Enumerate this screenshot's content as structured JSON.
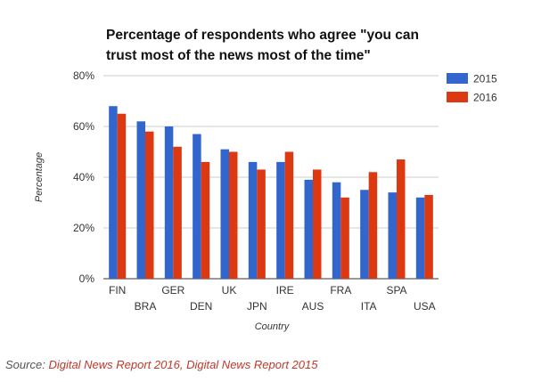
{
  "chart_data": {
    "type": "bar",
    "title_lines": [
      "Percentage of respondents who agree \"you can",
      "trust most of the news most of the time\""
    ],
    "xlabel": "Country",
    "ylabel": "Percentage",
    "ylim": [
      0,
      80
    ],
    "yticks": [
      "0%",
      "20%",
      "40%",
      "60%",
      "80%"
    ],
    "ytick_values": [
      0,
      20,
      40,
      60,
      80
    ],
    "grid": true,
    "legend_position": "right",
    "categories": [
      "FIN",
      "BRA",
      "GER",
      "DEN",
      "UK",
      "JPN",
      "IRE",
      "AUS",
      "FRA",
      "ITA",
      "SPA",
      "USA"
    ],
    "series": [
      {
        "name": "2015",
        "color": "#3366cc",
        "values": [
          68,
          62,
          60,
          57,
          51,
          46,
          46,
          39,
          38,
          35,
          34,
          32
        ]
      },
      {
        "name": "2016",
        "color": "#dc3912",
        "values": [
          65,
          58,
          52,
          46,
          50,
          43,
          50,
          43,
          32,
          42,
          47,
          33
        ]
      }
    ]
  },
  "source": {
    "label": "Source:",
    "text": "Digital News Report 2016, Digital News Report 2015"
  }
}
